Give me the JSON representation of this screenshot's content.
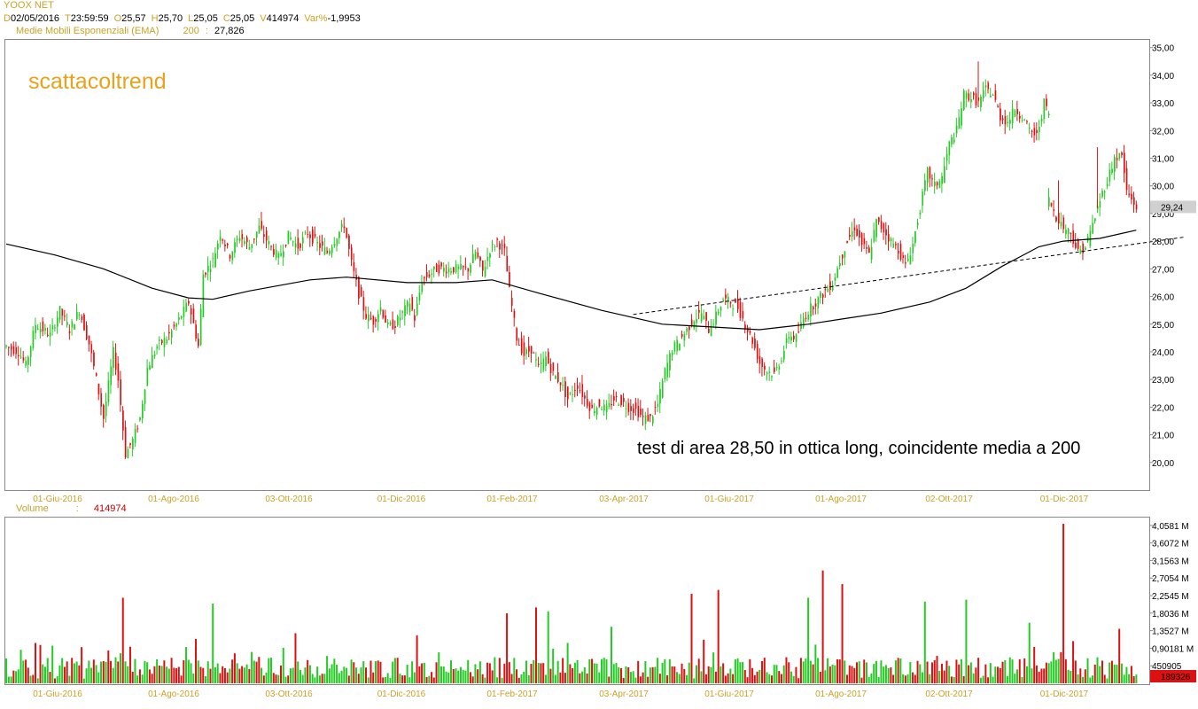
{
  "header": {
    "instrument": "YOOX NET",
    "fields": [
      {
        "key": "D",
        "value": "02/05/2016"
      },
      {
        "key": "T",
        "value": "23:59:59"
      },
      {
        "key": "O",
        "value": "25,57"
      },
      {
        "key": "H",
        "value": "25,70"
      },
      {
        "key": "L",
        "value": "25,05"
      },
      {
        "key": "C",
        "value": "25,05"
      },
      {
        "key": "V",
        "value": "414974"
      },
      {
        "key": "Var%",
        "value": "-1,9953"
      }
    ],
    "indicator_label": "Medie Mobili Esponenziali (EMA)",
    "indicator_period": "200",
    "indicator_sep": ":",
    "indicator_value": "27,826"
  },
  "volume_header": {
    "label": "Volume",
    "sep": ":",
    "value": "414974"
  },
  "colors": {
    "up": "#22cc22",
    "down": "#dd1111",
    "label": "#c9a227",
    "watermark": "#e8a21c",
    "last_box": "#d0d0d0"
  },
  "chart_data": [
    {
      "type": "candlestick",
      "watermark": "scattacoltrend",
      "annotation": "test di area 28,50 in ottica long, coincidente media a 200",
      "last_price": "29,24",
      "y_ticks": [
        "35,00",
        "34,00",
        "33,00",
        "32,00",
        "31,00",
        "30,00",
        "29,00",
        "28,00",
        "27,00",
        "26,00",
        "25,00",
        "24,00",
        "23,00",
        "22,00",
        "21,00",
        "20,00"
      ],
      "ylim": [
        19.0,
        35.15
      ],
      "x_ticks": [
        "01-Giu-2016",
        "01-Ago-2016",
        "03-Ott-2016",
        "01-Dic-2016",
        "01-Feb-2017",
        "03-Apr-2017",
        "01-Giu-2017",
        "01-Ago-2017",
        "02-Ott-2017",
        "01-Dic-2017"
      ],
      "price_path": [
        [
          0,
          24.2
        ],
        [
          5,
          24.0
        ],
        [
          8,
          23.5
        ],
        [
          12,
          25.0
        ],
        [
          18,
          24.6
        ],
        [
          22,
          25.5
        ],
        [
          26,
          24.8
        ],
        [
          30,
          25.5
        ],
        [
          34,
          24.3
        ],
        [
          37,
          23.0
        ],
        [
          40,
          21.6
        ],
        [
          44,
          24.0
        ],
        [
          46,
          23.0
        ],
        [
          49,
          20.3
        ],
        [
          52,
          20.8
        ],
        [
          55,
          21.6
        ],
        [
          58,
          23.4
        ],
        [
          62,
          24.2
        ],
        [
          66,
          24.5
        ],
        [
          70,
          25.0
        ],
        [
          75,
          25.8
        ],
        [
          79,
          24.2
        ],
        [
          81,
          26.8
        ],
        [
          85,
          27.3
        ],
        [
          88,
          28.3
        ],
        [
          92,
          27.5
        ],
        [
          96,
          28.2
        ],
        [
          100,
          27.8
        ],
        [
          104,
          28.5
        ],
        [
          108,
          27.9
        ],
        [
          112,
          27.4
        ],
        [
          116,
          28.2
        ],
        [
          120,
          27.8
        ],
        [
          124,
          28.3
        ],
        [
          128,
          27.9
        ],
        [
          132,
          27.6
        ],
        [
          136,
          28.2
        ],
        [
          139,
          28.6
        ],
        [
          142,
          27.2
        ],
        [
          145,
          26.1
        ],
        [
          148,
          25.3
        ],
        [
          151,
          25.1
        ],
        [
          154,
          25.6
        ],
        [
          157,
          24.9
        ],
        [
          160,
          25.0
        ],
        [
          163,
          25.4
        ],
        [
          166,
          25.8
        ],
        [
          168,
          25.2
        ],
        [
          171,
          26.6
        ],
        [
          174,
          26.8
        ],
        [
          177,
          27.0
        ],
        [
          180,
          27.0
        ],
        [
          184,
          27.0
        ],
        [
          187,
          27.0
        ],
        [
          190,
          27.0
        ],
        [
          193,
          27.6
        ],
        [
          196,
          26.9
        ],
        [
          199,
          27.7
        ],
        [
          202,
          28.0
        ],
        [
          205,
          27.6
        ],
        [
          207,
          26.2
        ],
        [
          210,
          24.5
        ],
        [
          213,
          23.9
        ],
        [
          216,
          24.1
        ],
        [
          219,
          23.4
        ],
        [
          222,
          23.8
        ],
        [
          225,
          23.2
        ],
        [
          228,
          22.9
        ],
        [
          231,
          22.3
        ],
        [
          235,
          22.8
        ],
        [
          238,
          22.3
        ],
        [
          241,
          21.9
        ],
        [
          244,
          22.1
        ],
        [
          247,
          21.9
        ],
        [
          250,
          22.3
        ],
        [
          253,
          22.2
        ],
        [
          256,
          22.0
        ],
        [
          259,
          21.9
        ],
        [
          262,
          21.6
        ],
        [
          265,
          21.6
        ],
        [
          268,
          22.1
        ],
        [
          271,
          23.3
        ],
        [
          274,
          24.1
        ],
        [
          277,
          24.4
        ],
        [
          280,
          24.8
        ],
        [
          283,
          25.2
        ],
        [
          286,
          25.4
        ],
        [
          289,
          24.8
        ],
        [
          292,
          25.3
        ],
        [
          295,
          25.9
        ],
        [
          298,
          25.8
        ],
        [
          301,
          25.6
        ],
        [
          304,
          25.0
        ],
        [
          307,
          24.4
        ],
        [
          310,
          23.6
        ],
        [
          313,
          23.3
        ],
        [
          316,
          23.2
        ],
        [
          319,
          23.8
        ],
        [
          322,
          24.6
        ],
        [
          325,
          24.5
        ],
        [
          328,
          25.2
        ],
        [
          331,
          25.6
        ],
        [
          334,
          25.9
        ],
        [
          337,
          26.2
        ],
        [
          340,
          26.5
        ],
        [
          343,
          27.3
        ],
        [
          346,
          28.0
        ],
        [
          349,
          28.5
        ],
        [
          352,
          27.9
        ],
        [
          355,
          27.5
        ],
        [
          358,
          28.7
        ],
        [
          361,
          28.4
        ],
        [
          364,
          28.0
        ],
        [
          367,
          27.7
        ],
        [
          370,
          27.1
        ],
        [
          373,
          27.9
        ],
        [
          376,
          29.2
        ],
        [
          379,
          30.5
        ],
        [
          382,
          30.0
        ],
        [
          385,
          30.3
        ],
        [
          388,
          31.5
        ],
        [
          391,
          32.0
        ],
        [
          394,
          33.3
        ],
        [
          397,
          33.2
        ],
        [
          400,
          33.0
        ],
        [
          403,
          33.5
        ],
        [
          406,
          33.3
        ],
        [
          409,
          32.5
        ],
        [
          412,
          32.3
        ],
        [
          415,
          32.8
        ],
        [
          418,
          32.5
        ],
        [
          421,
          32.0
        ],
        [
          424,
          31.8
        ],
        [
          427,
          33.0
        ],
        [
          429,
          32.6
        ],
        [
          430,
          null
        ],
        [
          431,
          null
        ],
        [
          432,
          null
        ],
        [
          433,
          null
        ],
        [
          434,
          null
        ],
        [
          435,
          null
        ],
        [
          436,
          null
        ],
        [
          437,
          null
        ],
        [
          438,
          null
        ],
        [
          439,
          null
        ],
        [
          440,
          null
        ],
        [
          441,
          null
        ],
        [
          442,
          null
        ],
        [
          443,
          null
        ],
        [
          444,
          null
        ],
        [
          445,
          null
        ],
        [
          446,
          null
        ],
        [
          447,
          null
        ],
        [
          448,
          null
        ],
        [
          449,
          null
        ],
        [
          450,
          null
        ],
        [
          451,
          null
        ],
        [
          452,
          null
        ],
        [
          453,
          null
        ],
        [
          454,
          null
        ],
        [
          455,
          null
        ],
        [
          456,
          null
        ],
        [
          457,
          null
        ],
        [
          458,
          null
        ],
        [
          459,
          null
        ],
        [
          460,
          null
        ],
        [
          461,
          null
        ],
        [
          462,
          null
        ],
        [
          463,
          null
        ],
        [
          464,
          null
        ],
        [
          465,
          null
        ],
        [
          466,
          null
        ],
        [
          467,
          null
        ],
        [
          468,
          null
        ],
        [
          469,
          null
        ],
        [
          470,
          null
        ]
      ],
      "price_path_2": [
        [
          429,
          29.5
        ],
        [
          432,
          28.9
        ],
        [
          435,
          28.5
        ],
        [
          438,
          28.3
        ],
        [
          441,
          27.6
        ],
        [
          444,
          27.8
        ],
        [
          447,
          28.6
        ],
        [
          450,
          29.5
        ],
        [
          453,
          30.2
        ],
        [
          456,
          31.0
        ],
        [
          459,
          31.1
        ],
        [
          461,
          29.8
        ],
        [
          463,
          29.5
        ],
        [
          465,
          29.24
        ]
      ],
      "ema200": [
        [
          0,
          27.9
        ],
        [
          20,
          27.5
        ],
        [
          40,
          27.0
        ],
        [
          60,
          26.3
        ],
        [
          75,
          25.95
        ],
        [
          85,
          25.9
        ],
        [
          100,
          26.2
        ],
        [
          125,
          26.6
        ],
        [
          140,
          26.7
        ],
        [
          165,
          26.5
        ],
        [
          185,
          26.5
        ],
        [
          200,
          26.6
        ],
        [
          220,
          26.1
        ],
        [
          245,
          25.5
        ],
        [
          270,
          25.0
        ],
        [
          290,
          24.9
        ],
        [
          310,
          24.8
        ],
        [
          330,
          25.0
        ],
        [
          345,
          25.2
        ],
        [
          360,
          25.4
        ],
        [
          380,
          25.8
        ],
        [
          395,
          26.3
        ],
        [
          410,
          27.1
        ],
        [
          425,
          27.8
        ],
        [
          435,
          28.0
        ],
        [
          450,
          28.1
        ],
        [
          465,
          28.4
        ]
      ],
      "trendline": [
        [
          258,
          25.35
        ],
        [
          485,
          28.15
        ]
      ],
      "high_spikes": [
        [
          400,
          34.5
        ],
        [
          449,
          31.4
        ],
        [
          433,
          30.2
        ]
      ]
    },
    {
      "type": "bar",
      "name": "Volume",
      "last_value_label": "189326",
      "y_ticks": [
        "4,0581 M",
        "3,6072 M",
        "3,1563 M",
        "2,7054 M",
        "2,2545 M",
        "1,8036 M",
        "1,3527 M",
        "0,90181 M",
        "450905"
      ],
      "ylim": [
        0,
        4.26
      ],
      "x_ticks": [
        "01-Giu-2016",
        "01-Ago-2016",
        "03-Ott-2016",
        "01-Dic-2016",
        "01-Feb-2017",
        "03-Apr-2017",
        "01-Giu-2017",
        "01-Ago-2017",
        "02-Ott-2017",
        "01-Dic-2017"
      ],
      "peaks": [
        [
          48,
          2.2
        ],
        [
          85,
          2.05
        ],
        [
          206,
          1.8
        ],
        [
          218,
          1.95
        ],
        [
          223,
          1.85
        ],
        [
          282,
          2.3
        ],
        [
          293,
          2.4
        ],
        [
          330,
          2.2
        ],
        [
          336,
          2.9
        ],
        [
          344,
          2.55
        ],
        [
          378,
          2.1
        ],
        [
          395,
          2.15
        ],
        [
          435,
          4.1
        ],
        [
          458,
          1.4
        ]
      ]
    }
  ]
}
